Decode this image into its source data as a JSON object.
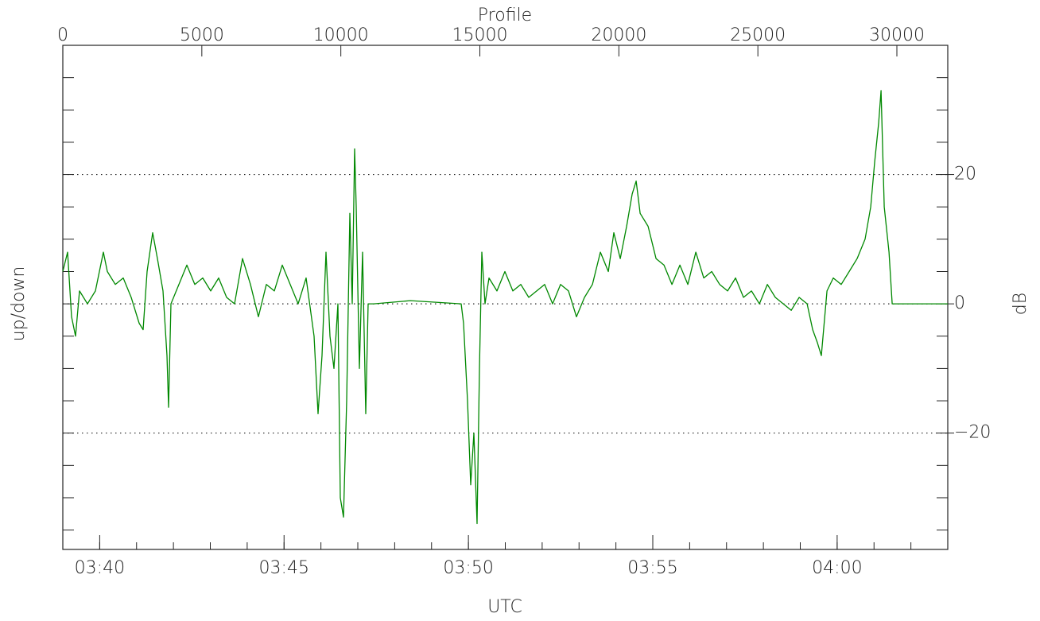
{
  "chart_data": {
    "type": "line",
    "xlabel": "Profile",
    "x2label": "UTC",
    "ylabel": "up/down",
    "y2label": "dB",
    "x": [
      0,
      172,
      315,
      458,
      601,
      887,
      1173,
      1459,
      1601,
      1888,
      2174,
      2460,
      2746,
      2889,
      3031,
      3232,
      3403,
      3604,
      3746,
      3804,
      3889,
      4175,
      4461,
      4748,
      5034,
      5320,
      5606,
      5892,
      6178,
      6464,
      6750,
      7036,
      7322,
      7608,
      7894,
      8180,
      8466,
      8752,
      9038,
      9181,
      9324,
      9467,
      9610,
      9753,
      9896,
      9981,
      10096,
      10210,
      10325,
      10411,
      10497,
      10554,
      10668,
      10783,
      10897,
      10983,
      11183,
      12500,
      14329,
      14414,
      14557,
      14672,
      14786,
      14901,
      14986,
      15072,
      15186,
      15329,
      15615,
      15901,
      16187,
      16473,
      16759,
      17045,
      17331,
      17617,
      17903,
      18189,
      18475,
      18762,
      19048,
      19334,
      19620,
      19820,
      20049,
      20278,
      20478,
      20621,
      20764,
      21050,
      21336,
      21622,
      21908,
      22194,
      22480,
      22766,
      23052,
      23338,
      23624,
      23910,
      24196,
      24482,
      24768,
      25054,
      25340,
      25626,
      25912,
      26198,
      26484,
      26770,
      26970,
      27141,
      27284,
      27485,
      27713,
      27999,
      28285,
      28571,
      28857,
      29058,
      29201,
      29344,
      29430,
      29544,
      29716,
      29830,
      30058,
      31834
    ],
    "series": [
      {
        "color": "#008800",
        "values": [
          5,
          8,
          -2,
          -5,
          2,
          0,
          2,
          8,
          5,
          3,
          4,
          1,
          -3,
          -4,
          5,
          11,
          7,
          2,
          -8,
          -16,
          0,
          3,
          6,
          3,
          4,
          2,
          4,
          1,
          0,
          7,
          3,
          -2,
          3,
          2,
          6,
          3,
          0,
          4,
          -5,
          -17,
          -8,
          8,
          -5,
          -10,
          0,
          -30,
          -33,
          -15,
          14,
          0,
          24,
          15,
          -10,
          8,
          -17,
          0,
          0,
          0.5,
          0,
          -3,
          -15,
          -28,
          -20,
          -34,
          -10,
          8,
          0,
          4,
          2,
          5,
          2,
          3,
          1,
          2,
          3,
          0,
          3,
          2,
          -2,
          1,
          3,
          8,
          5,
          11,
          7,
          12,
          17,
          19,
          14,
          12,
          7,
          6,
          3,
          6,
          3,
          8,
          4,
          5,
          3,
          2,
          4,
          1,
          2,
          0,
          3,
          1,
          0,
          -1,
          1,
          0,
          -4,
          -6,
          -8,
          2,
          4,
          3,
          5,
          7,
          10,
          15,
          22,
          28,
          33,
          15,
          8,
          0,
          0,
          0
        ]
      }
    ],
    "xlim": [
      0,
      31830
    ],
    "xticks": [
      0,
      5000,
      10000,
      15000,
      20000,
      25000,
      30000
    ],
    "x2lim": [
      "03:39",
      "04:03"
    ],
    "x2ticks": [
      "03:40",
      "03:45",
      "03:50",
      "03:55",
      "04:00"
    ],
    "x2minorticks": [
      "03:40",
      "03:41",
      "03:42",
      "03:43",
      "03:44",
      "03:45",
      "03:46",
      "03:47",
      "03:48",
      "03:49",
      "03:50",
      "03:51",
      "03:52",
      "03:53",
      "03:54",
      "03:55",
      "03:56",
      "03:57",
      "03:58",
      "03:59",
      "04:00",
      "04:01",
      "04:02"
    ],
    "ylim": [
      -38,
      40
    ],
    "yticks": [
      {
        "value": -20,
        "label": "−20"
      },
      0,
      20
    ],
    "yminorticks": [
      -35,
      -30,
      -25,
      -20,
      -15,
      -10,
      -5,
      0,
      5,
      10,
      15,
      20,
      25,
      30,
      35
    ],
    "grid": true
  }
}
